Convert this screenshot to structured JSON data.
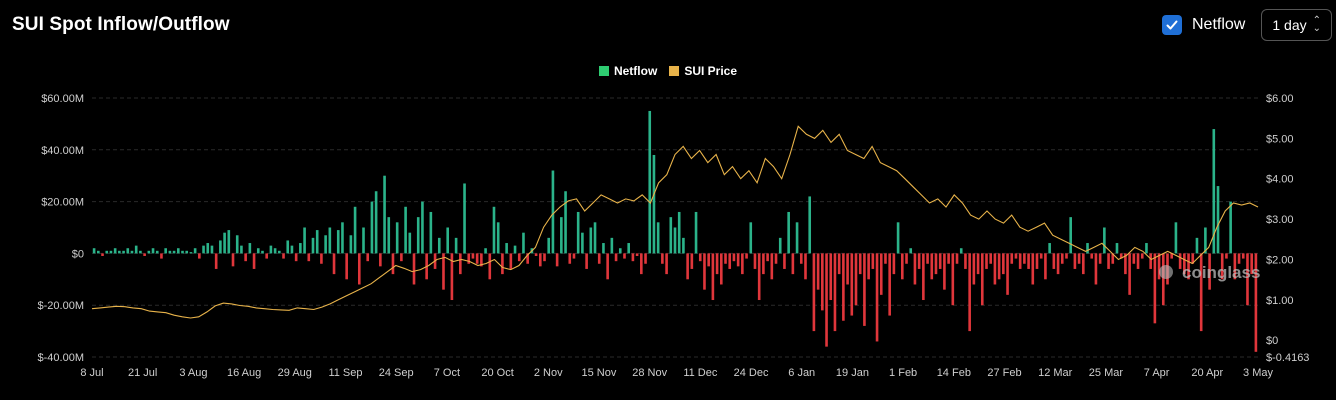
{
  "header": {
    "title": "SUI Spot Inflow/Outflow",
    "netflow_toggle_label": "Netflow",
    "netflow_checked": true,
    "interval_value": "1 day",
    "checkbox_icon": "check-icon",
    "interval_icon": "chevron-updown-icon"
  },
  "colors": {
    "inflow": "#2bb38a",
    "outflow": "#e0363b",
    "legend_netflow": "#2ecc71",
    "price": "#e8b34a",
    "grid": "#2a2a2a"
  },
  "watermark": "coinglass",
  "chart_data": {
    "type": "bar",
    "legend": [
      "Netflow",
      "SUI Price"
    ],
    "x_ticks": [
      "8 Jul",
      "21 Jul",
      "3 Aug",
      "16 Aug",
      "29 Aug",
      "11 Sep",
      "24 Sep",
      "7 Oct",
      "20 Oct",
      "2 Nov",
      "15 Nov",
      "28 Nov",
      "11 Dec",
      "24 Dec",
      "6 Jan",
      "19 Jan",
      "1 Feb",
      "14 Feb",
      "27 Feb",
      "12 Mar",
      "25 Mar",
      "7 Apr",
      "20 Apr",
      "3 May"
    ],
    "y_left_ticks": [
      "$60.00M",
      "$40.00M",
      "$20.00M",
      "$0",
      "$-20.00M",
      "$-40.00M"
    ],
    "y_right_ticks": [
      "$6.00",
      "$5.00",
      "$4.00",
      "$3.00",
      "$2.00",
      "$1.00",
      "$0",
      "$-0.4163"
    ],
    "y_left_range": [
      -40,
      60
    ],
    "y_right_range": [
      -0.4163,
      6
    ],
    "netflow_millions": [
      2,
      1,
      -1,
      1,
      1,
      2,
      1,
      1,
      2,
      1,
      3,
      1,
      -1,
      1,
      2,
      1,
      -2,
      2,
      1,
      1,
      2,
      1,
      1,
      0.5,
      2,
      -2,
      3,
      4,
      3,
      -6,
      5,
      8,
      9,
      -5,
      7,
      3,
      -3,
      4,
      -6,
      2,
      1,
      -2,
      3,
      2,
      1,
      -2,
      5,
      3,
      -3,
      4,
      10,
      -3,
      6,
      9,
      -4,
      7,
      10,
      -8,
      9,
      12,
      -10,
      7,
      18,
      -12,
      10,
      -3,
      20,
      24,
      -5,
      30,
      14,
      -8,
      12,
      -3,
      18,
      8,
      -12,
      14,
      20,
      -10,
      16,
      -6,
      6,
      -14,
      10,
      -18,
      6,
      -8,
      27,
      -4,
      -2,
      -4,
      -5,
      2,
      -10,
      18,
      12,
      -8,
      4,
      -6,
      3,
      -3,
      8,
      -4,
      2,
      -1,
      -5,
      -3,
      6,
      32,
      -5,
      14,
      24,
      -4,
      -2,
      16,
      8,
      -6,
      10,
      12,
      -4,
      4,
      -10,
      6,
      -3,
      2,
      -2,
      4,
      -3,
      -1,
      -8,
      -4,
      55,
      38,
      12,
      -4,
      -8,
      14,
      10,
      16,
      6,
      -10,
      -6,
      16,
      -3,
      -14,
      -5,
      -18,
      -8,
      -12,
      -4,
      -6,
      -3,
      -5,
      -8,
      -2,
      12,
      -6,
      -18,
      -8,
      -3,
      -10,
      -4,
      6,
      -6,
      16,
      -8,
      12,
      -4,
      -10,
      22,
      -30,
      -14,
      -22,
      -36,
      -18,
      -30,
      -8,
      -26,
      -12,
      -24,
      -20,
      -8,
      -28,
      -10,
      -6,
      -34,
      -16,
      -4,
      -24,
      -8,
      12,
      -10,
      -4,
      2,
      -12,
      -6,
      -18,
      -4,
      -10,
      -8,
      -6,
      -14,
      -4,
      -20,
      -4,
      2,
      -6,
      -30,
      -12,
      -8,
      -20,
      -6,
      -4,
      -12,
      -10,
      -8,
      -16,
      -4,
      -2,
      -6,
      -4,
      -6,
      -12,
      -6,
      -2,
      -10,
      4,
      -6,
      -8,
      -4,
      -2,
      14,
      -6,
      -4,
      -8,
      4,
      -2,
      -12,
      -4,
      10,
      -6,
      -4,
      4,
      -2,
      -8,
      -16,
      -4,
      -6,
      -2,
      4,
      -6,
      -27,
      -10,
      -20,
      -12,
      -2,
      12,
      -6,
      -8,
      -10,
      -4,
      6,
      -30,
      10,
      -14,
      48,
      26,
      -10,
      -2,
      20,
      -10,
      -4,
      -2,
      -20,
      -8,
      -38
    ],
    "price_usd": [
      0.78,
      0.8,
      0.82,
      0.84,
      0.83,
      0.8,
      0.78,
      0.72,
      0.7,
      0.68,
      0.62,
      0.58,
      0.55,
      0.58,
      0.7,
      0.85,
      0.92,
      0.9,
      0.86,
      0.84,
      0.8,
      0.78,
      0.76,
      0.75,
      0.74,
      0.8,
      0.78,
      0.76,
      0.82,
      0.9,
      1.0,
      1.1,
      1.2,
      1.3,
      1.4,
      1.55,
      1.7,
      1.85,
      1.78,
      1.7,
      1.75,
      1.85,
      2.0,
      2.05,
      1.95,
      2.0,
      1.95,
      1.85,
      1.9,
      2.0,
      1.8,
      1.75,
      1.85,
      2.1,
      2.3,
      2.8,
      3.1,
      3.3,
      3.45,
      3.5,
      3.2,
      3.4,
      3.6,
      3.5,
      3.4,
      3.5,
      3.45,
      3.6,
      3.4,
      3.9,
      4.1,
      4.6,
      4.8,
      4.5,
      4.7,
      4.4,
      4.6,
      4.1,
      4.3,
      4.0,
      4.2,
      3.9,
      4.5,
      4.3,
      4.0,
      4.6,
      5.3,
      5.1,
      5.0,
      5.2,
      4.9,
      5.1,
      4.7,
      4.6,
      4.5,
      4.8,
      4.4,
      4.3,
      4.2,
      4.0,
      3.8,
      3.6,
      3.4,
      3.5,
      3.3,
      3.6,
      3.4,
      3.1,
      3.0,
      3.2,
      3.0,
      2.9,
      3.1,
      2.8,
      2.7,
      2.8,
      2.9,
      2.6,
      2.5,
      2.4,
      2.3,
      2.2,
      2.3,
      2.4,
      2.2,
      2.0,
      2.1,
      2.3,
      2.2,
      2.0,
      2.1,
      2.2,
      2.1,
      2.0,
      1.9,
      2.1,
      2.3,
      2.8,
      3.2,
      3.4,
      3.35,
      3.4,
      3.3
    ]
  }
}
